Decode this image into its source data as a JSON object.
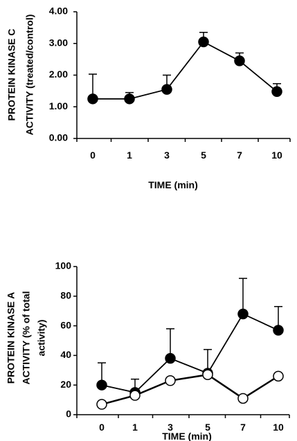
{
  "chart_data": [
    {
      "type": "line",
      "title": "",
      "ylabel_lines": [
        "PROTEIN KINASE C",
        "ACTIVITY (treated/control)"
      ],
      "xlabel": "TIME (min)",
      "categories": [
        "0",
        "1",
        "3",
        "5",
        "7",
        "10"
      ],
      "ylim": [
        0,
        4
      ],
      "yticks": [
        "0.00",
        "1.00",
        "2.00",
        "3.00",
        "4.00"
      ],
      "grid": false,
      "legend": "none",
      "series": [
        {
          "marker": "filled-circle",
          "values": [
            1.25,
            1.25,
            1.55,
            3.05,
            2.45,
            1.48
          ],
          "error_upper": [
            0.78,
            0.2,
            0.45,
            0.3,
            0.25,
            0.25
          ]
        }
      ]
    },
    {
      "type": "line",
      "title": "",
      "ylabel_lines": [
        "PROTEIN KINASE A",
        "ACTIVITY (% of total",
        "activity)"
      ],
      "xlabel": "TIME (min)",
      "categories": [
        "0",
        "1",
        "3",
        "5",
        "7",
        "10"
      ],
      "ylim": [
        0,
        100
      ],
      "yticks": [
        "0",
        "20",
        "40",
        "60",
        "80",
        "100"
      ],
      "grid": false,
      "legend": "none",
      "series": [
        {
          "marker": "filled-circle",
          "values": [
            20,
            15,
            38,
            28,
            68,
            57
          ],
          "error_upper": [
            15,
            9,
            20,
            16,
            24,
            16
          ]
        },
        {
          "marker": "open-circle",
          "values": [
            7,
            13,
            23,
            27,
            11,
            26
          ],
          "error_upper": [
            0,
            0,
            0,
            0,
            0,
            0
          ]
        }
      ]
    }
  ]
}
